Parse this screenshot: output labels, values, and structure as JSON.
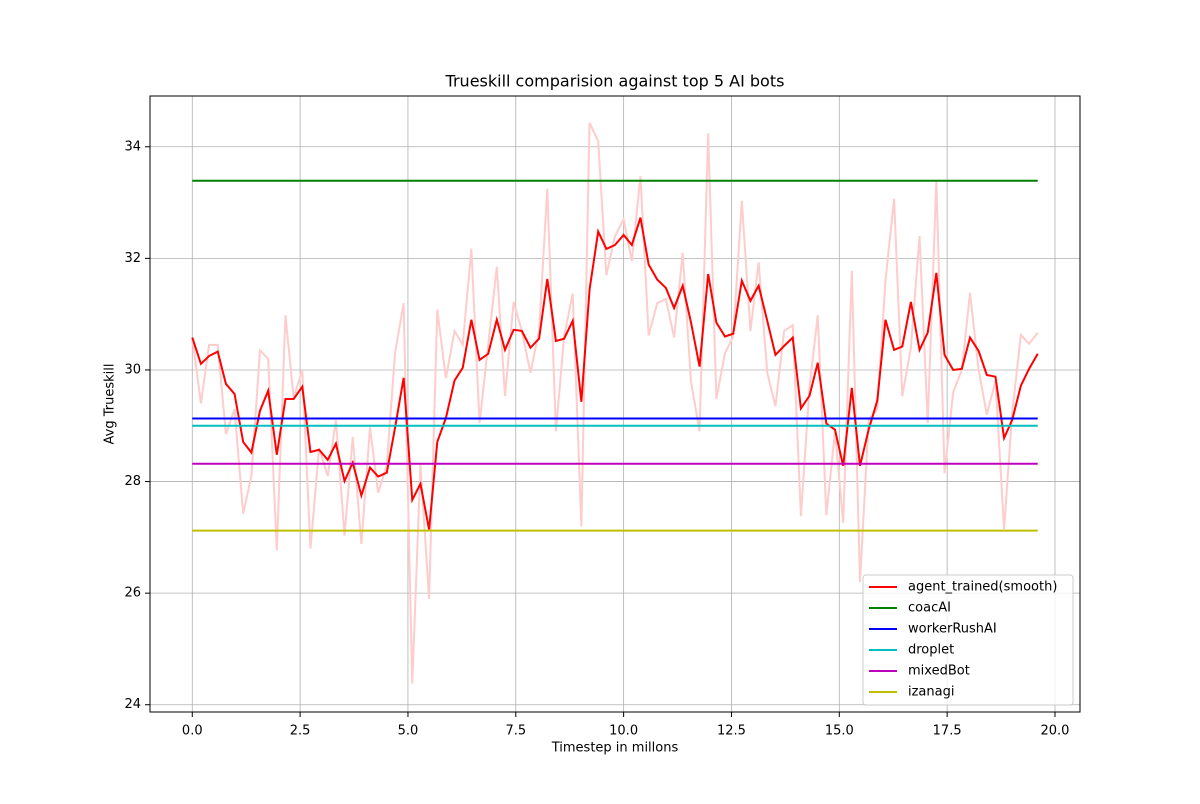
{
  "chart_data": {
    "type": "line",
    "title": "Trueskill comparision against top 5 AI bots",
    "xlabel": "Timestep in millons",
    "ylabel": "Avg Trueskill",
    "x": [
      0,
      0.2,
      0.39,
      0.59,
      0.78,
      0.98,
      1.18,
      1.37,
      1.57,
      1.76,
      1.96,
      2.16,
      2.35,
      2.55,
      2.74,
      2.94,
      3.14,
      3.33,
      3.53,
      3.72,
      3.92,
      4.12,
      4.31,
      4.51,
      4.7,
      4.9,
      5.1,
      5.29,
      5.49,
      5.68,
      5.88,
      6.08,
      6.27,
      6.47,
      6.66,
      6.86,
      7.06,
      7.25,
      7.45,
      7.64,
      7.84,
      8.04,
      8.23,
      8.43,
      8.62,
      8.82,
      9.02,
      9.21,
      9.41,
      9.6,
      9.8,
      10.0,
      10.19,
      10.39,
      10.58,
      10.78,
      10.98,
      11.17,
      11.37,
      11.56,
      11.76,
      11.96,
      12.15,
      12.35,
      12.54,
      12.74,
      12.94,
      13.13,
      13.33,
      13.52,
      13.72,
      13.92,
      14.11,
      14.31,
      14.5,
      14.7,
      14.9,
      15.09,
      15.29,
      15.48,
      15.68,
      15.88,
      16.07,
      16.27,
      16.46,
      16.66,
      16.86,
      17.05,
      17.25,
      17.44,
      17.64,
      17.84,
      18.03,
      18.23,
      18.42,
      18.62,
      18.82,
      19.01,
      19.21,
      19.4,
      19.6
    ],
    "series": [
      {
        "color": "#ffcccc",
        "values": [
          30.58,
          29.4,
          30.45,
          30.45,
          28.85,
          29.3,
          27.42,
          28.1,
          30.35,
          30.2,
          26.77,
          30.98,
          29.5,
          30.0,
          26.8,
          28.6,
          28.1,
          29.1,
          27.03,
          28.8,
          26.88,
          28.97,
          27.8,
          28.3,
          30.3,
          31.2,
          24.38,
          28.3,
          25.9,
          31.08,
          29.85,
          30.7,
          30.45,
          32.17,
          29.05,
          30.45,
          31.85,
          29.53,
          31.22,
          30.7,
          29.95,
          30.7,
          33.25,
          28.9,
          30.6,
          31.37,
          27.2,
          34.43,
          34.1,
          31.7,
          32.4,
          32.7,
          31.95,
          33.47,
          30.62,
          31.2,
          31.27,
          30.58,
          32.1,
          29.8,
          28.9,
          34.24,
          29.48,
          30.3,
          30.6,
          33.03,
          30.7,
          31.93,
          29.95,
          29.35,
          30.7,
          30.8,
          27.38,
          29.7,
          30.98,
          27.4,
          28.9,
          27.26,
          31.78,
          26.2,
          29.1,
          29.3,
          31.6,
          33.07,
          29.53,
          30.4,
          32.4,
          29.05,
          33.4,
          28.15,
          29.6,
          30.0,
          31.38,
          30.0,
          29.2,
          29.8,
          27.15,
          29.25,
          30.63,
          30.47,
          30.67
        ]
      },
      {
        "name": "agent_trained(smooth)",
        "color": "#ff0000",
        "values": [
          30.58,
          30.11,
          30.25,
          30.33,
          29.75,
          29.57,
          28.71,
          28.52,
          29.27,
          29.63,
          28.48,
          29.48,
          29.48,
          29.7,
          28.53,
          28.57,
          28.39,
          28.68,
          28.01,
          28.34,
          27.75,
          28.25,
          28.09,
          28.16,
          28.96,
          29.86,
          27.67,
          27.96,
          27.14,
          28.71,
          29.14,
          29.81,
          30.04,
          30.9,
          30.18,
          30.29,
          30.9,
          30.36,
          30.72,
          30.7,
          30.4,
          30.56,
          31.63,
          30.52,
          30.56,
          30.88,
          29.43,
          31.44,
          32.48,
          32.17,
          32.24,
          32.42,
          32.24,
          32.73,
          31.89,
          31.62,
          31.47,
          31.11,
          31.51,
          30.86,
          30.06,
          31.72,
          30.85,
          30.6,
          30.65,
          31.6,
          31.24,
          31.51,
          30.88,
          30.27,
          30.43,
          30.58,
          29.31,
          29.54,
          30.13,
          29.04,
          28.93,
          28.28,
          29.68,
          28.28,
          28.93,
          29.45,
          30.9,
          30.36,
          30.42,
          31.22,
          30.36,
          30.67,
          31.74,
          30.27,
          30.0,
          30.02,
          30.58,
          30.34,
          29.91,
          29.88,
          28.78,
          29.11,
          29.72,
          30.02,
          30.29
        ]
      },
      {
        "name": "coacAI",
        "color": "#008000",
        "x": [
          0,
          19.6
        ],
        "values": [
          33.39,
          33.39
        ]
      },
      {
        "name": "workerRushAI",
        "color": "#0000ff",
        "x": [
          0,
          19.6
        ],
        "values": [
          29.13,
          29.13
        ]
      },
      {
        "name": "droplet",
        "color": "#00bfbf",
        "x": [
          0,
          19.6
        ],
        "values": [
          29.0,
          29.0
        ]
      },
      {
        "name": "mixedBot",
        "color": "#bf00bf",
        "x": [
          0,
          19.6
        ],
        "values": [
          28.32,
          28.32
        ]
      },
      {
        "name": "izanagi",
        "color": "#bfbf00",
        "x": [
          0,
          19.6
        ],
        "values": [
          27.12,
          27.12
        ]
      }
    ],
    "xlim": [
      -0.98,
      20.58
    ],
    "ylim": [
      23.87,
      34.91
    ],
    "xticks": [
      {
        "value": 0,
        "label": "0.0"
      },
      2.5,
      {
        "value": 5,
        "label": "5.0"
      },
      7.5,
      {
        "value": 10,
        "label": "10.0"
      },
      12.5,
      {
        "value": 15,
        "label": "15.0"
      },
      17.5,
      {
        "value": 20,
        "label": "20.0"
      }
    ],
    "yticks": [
      24,
      26,
      28,
      30,
      32,
      34
    ],
    "grid": true,
    "legend": "lower right"
  }
}
